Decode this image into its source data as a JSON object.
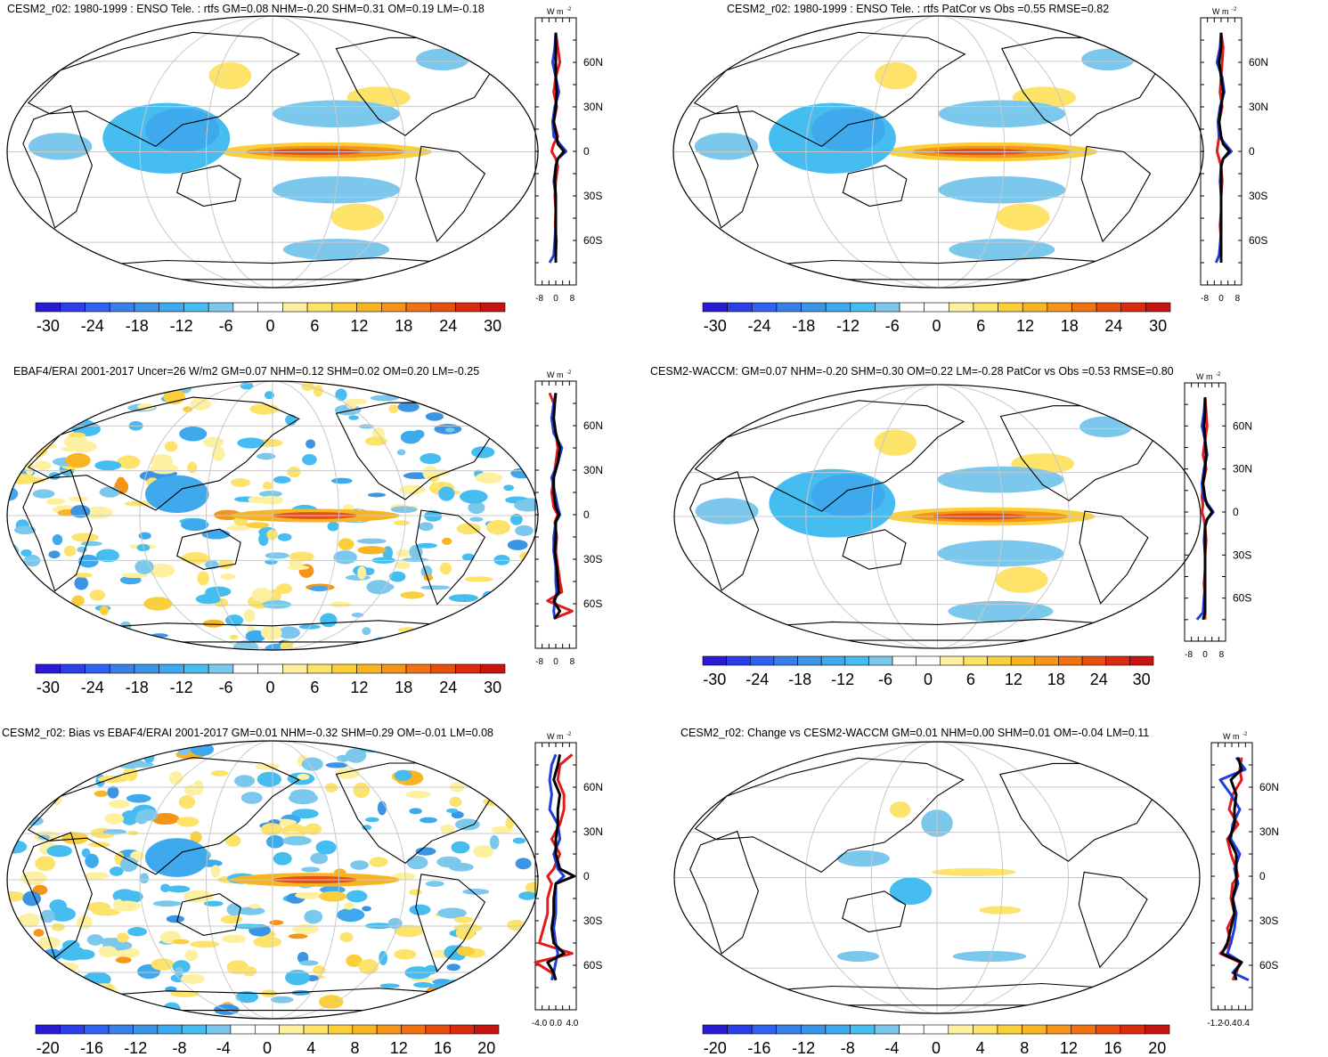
{
  "palettes": {
    "p30": [
      "#2a1ad6",
      "#2c3ee8",
      "#2f62f0",
      "#3a7fe8",
      "#3b95e4",
      "#3ea9ec",
      "#46bdf0",
      "#7cc8ec",
      "#ffffff",
      "#ffffff",
      "#fdf0a0",
      "#fde36a",
      "#fbcf3a",
      "#f8b423",
      "#f49418",
      "#ef7314",
      "#e74f12",
      "#dc2a10",
      "#c8140e"
    ],
    "p20": [
      "#2a1ad6",
      "#2c3ee8",
      "#2f62f0",
      "#3a7fe8",
      "#3b95e4",
      "#3ea9ec",
      "#46bdf0",
      "#7cc8ec",
      "#ffffff",
      "#ffffff",
      "#fdf0a0",
      "#fde36a",
      "#fbcf3a",
      "#f8b423",
      "#f49418",
      "#ef7314",
      "#e74f12",
      "#dc2a10",
      "#c8140e"
    ]
  },
  "unit_label": "W m",
  "unit_exp": "-2",
  "lat_ticks": [
    "60N",
    "30N",
    "0",
    "30S",
    "60S"
  ],
  "panels": [
    {
      "title": "CESM2_r02: 1980-1999 : ENSO Tele. : rtfs GM=0.08 NHM=-0.20 SHM=0.31 OM=0.19 LM=-0.18",
      "style": "smooth",
      "colorbar": {
        "palette": "p30",
        "labels": [
          "-30",
          "-24",
          "-18",
          "-12",
          "-6",
          "0",
          "6",
          "12",
          "18",
          "24",
          "30"
        ]
      },
      "zonal_x_ticks": [
        "-8",
        "0",
        "8"
      ],
      "zonal_xlim": [
        -10,
        10
      ],
      "chart_data": {
        "type": "line",
        "ylim": [
          -90,
          90
        ],
        "x_label": "W m-2",
        "series": [
          {
            "color": "#e31a1c",
            "y": [
              80,
              70,
              60,
              50,
              40,
              30,
              20,
              10,
              5,
              0,
              -5,
              -10,
              -20,
              -30,
              -40,
              -50,
              -60,
              -70,
              -75
            ],
            "x": [
              0,
              1,
              2,
              0,
              -1,
              0.5,
              -1,
              1,
              -1,
              -2,
              0,
              1,
              0,
              -0.5,
              0,
              -0.3,
              0.3,
              0,
              0
            ]
          },
          {
            "color": "#1f3fd8",
            "y": [
              80,
              70,
              60,
              50,
              40,
              30,
              20,
              10,
              5,
              0,
              -5,
              -10,
              -20,
              -30,
              -40,
              -50,
              -60,
              -70,
              -75
            ],
            "x": [
              0,
              -0.5,
              -1.5,
              0,
              1.5,
              -0.5,
              -1.5,
              -1,
              2,
              5,
              1,
              0,
              -1,
              0,
              0,
              0,
              -0.5,
              -1,
              -3
            ]
          },
          {
            "color": "#000000",
            "y": [
              80,
              70,
              60,
              50,
              40,
              30,
              20,
              10,
              5,
              0,
              -5,
              -10,
              -20,
              -30,
              -40,
              -50,
              -60,
              -70,
              -75
            ],
            "x": [
              0,
              0,
              0,
              0,
              0.5,
              0,
              -1,
              0.5,
              1,
              4,
              1,
              0,
              -0.5,
              0,
              0,
              0,
              0,
              0,
              0
            ]
          }
        ]
      }
    },
    {
      "title": "CESM2_r02: 1980-1999 : ENSO Tele. : rtfs PatCor vs Obs =0.55 RMSE=0.82",
      "style": "smooth",
      "colorbar": {
        "palette": "p30",
        "labels": [
          "-30",
          "-24",
          "-18",
          "-12",
          "-6",
          "0",
          "6",
          "12",
          "18",
          "24",
          "30"
        ]
      },
      "zonal_x_ticks": [
        "-8",
        "0",
        "8"
      ],
      "zonal_xlim": [
        -10,
        10
      ],
      "chart_data": {
        "type": "line",
        "ylim": [
          -90,
          90
        ],
        "x_label": "W m-2",
        "series": [
          {
            "color": "#e31a1c",
            "y": [
              80,
              70,
              60,
              50,
              40,
              30,
              20,
              10,
              5,
              0,
              -5,
              -10,
              -20,
              -30,
              -40,
              -50,
              -60,
              -70,
              -75
            ],
            "x": [
              0,
              1,
              0.5,
              0,
              -0.5,
              0.5,
              -1,
              -1,
              -1.5,
              -2,
              -1,
              0,
              0.5,
              0,
              0,
              -0.5,
              0,
              0,
              0
            ]
          },
          {
            "color": "#1f3fd8",
            "y": [
              80,
              70,
              60,
              50,
              40,
              30,
              20,
              10,
              5,
              0,
              -5,
              -10,
              -20,
              -30,
              -40,
              -50,
              -60,
              -70,
              -75
            ],
            "x": [
              0,
              -0.5,
              -2,
              0.5,
              1.5,
              -0.5,
              -1.5,
              -1,
              2,
              5,
              1,
              0,
              -0.5,
              0,
              0,
              0,
              -0.3,
              -1,
              -2.5
            ]
          },
          {
            "color": "#000000",
            "y": [
              80,
              70,
              60,
              50,
              40,
              30,
              20,
              10,
              5,
              0,
              -5,
              -10,
              -20,
              -30,
              -40,
              -50,
              -60,
              -70,
              -75
            ],
            "x": [
              0,
              0,
              -1,
              0,
              1,
              0,
              -1,
              0,
              1,
              4,
              1,
              0,
              0,
              0,
              0,
              0,
              0,
              0,
              0
            ]
          }
        ]
      }
    },
    {
      "title": "EBAF4/ERAI 2001-2017 Uncer=26 W/m2 GM=0.07 NHM=0.12 SHM=0.02 OM=0.20 LM=-0.25",
      "style": "noisy",
      "colorbar": {
        "palette": "p30",
        "labels": [
          "-30",
          "-24",
          "-18",
          "-12",
          "-6",
          "0",
          "6",
          "12",
          "18",
          "24",
          "30"
        ]
      },
      "zonal_x_ticks": [
        "-8",
        "0",
        "8"
      ],
      "zonal_xlim": [
        -10,
        10
      ],
      "chart_data": {
        "type": "line",
        "ylim": [
          -90,
          90
        ],
        "x_label": "W m-2",
        "series": [
          {
            "color": "#e31a1c",
            "y": [
              82,
              75,
              65,
              55,
              45,
              35,
              25,
              15,
              5,
              0,
              -5,
              -15,
              -25,
              -35,
              -45,
              -52,
              -58,
              -65,
              -70
            ],
            "x": [
              -3,
              -1,
              -1.5,
              0,
              1,
              0,
              -1,
              -2,
              -1,
              1,
              -0.5,
              0.5,
              0,
              1,
              2,
              3,
              -4,
              8,
              -1
            ]
          },
          {
            "color": "#1f3fd8",
            "y": [
              82,
              75,
              65,
              55,
              45,
              35,
              25,
              15,
              5,
              0,
              -5,
              -15,
              -25,
              -35,
              -45,
              -52,
              -58,
              -65,
              -70
            ],
            "x": [
              0,
              -1,
              -2,
              -1,
              3,
              1,
              -2,
              -0.5,
              1,
              2,
              0,
              -1,
              -1,
              0,
              0,
              0.5,
              -0.5,
              -1,
              -0.5
            ]
          },
          {
            "color": "#000000",
            "y": [
              82,
              75,
              65,
              55,
              45,
              35,
              25,
              15,
              5,
              0,
              -5,
              -15,
              -25,
              -35,
              -45,
              -52,
              -58,
              -65,
              -70
            ],
            "x": [
              0,
              -0.5,
              -1,
              0,
              2,
              1,
              -1,
              -1,
              0,
              1.5,
              0,
              0,
              -0.5,
              0.5,
              1,
              1.5,
              -1,
              2,
              -0.5
            ]
          }
        ]
      }
    },
    {
      "title": "CESM2-WACCM: GM=0.07 NHM=-0.20 SHM=0.30 OM=0.22 LM=-0.28 PatCor vs Obs =0.53 RMSE=0.80",
      "style": "smooth",
      "colorbar": {
        "palette": "p30",
        "labels": [
          "-30",
          "-24",
          "-18",
          "-12",
          "-6",
          "0",
          "6",
          "12",
          "18",
          "24",
          "30"
        ]
      },
      "zonal_x_ticks": [
        "-8",
        "0",
        "8"
      ],
      "zonal_xlim": [
        -10,
        10
      ],
      "chart_data": {
        "type": "line",
        "ylim": [
          -90,
          90
        ],
        "x_label": "W m-2",
        "series": [
          {
            "color": "#e31a1c",
            "y": [
              80,
              70,
              60,
              50,
              40,
              30,
              20,
              10,
              5,
              0,
              -5,
              -10,
              -20,
              -30,
              -40,
              -50,
              -60,
              -70,
              -75
            ],
            "x": [
              0,
              0.5,
              1,
              0,
              -1,
              0.5,
              -1,
              -1.5,
              -1,
              -1.5,
              -0.5,
              0,
              0.5,
              0,
              0,
              -0.5,
              0,
              0,
              0
            ]
          },
          {
            "color": "#1f3fd8",
            "y": [
              80,
              70,
              60,
              50,
              40,
              30,
              20,
              10,
              5,
              0,
              -5,
              -10,
              -20,
              -30,
              -40,
              -50,
              -60,
              -70,
              -75
            ],
            "x": [
              0,
              -0.5,
              -1.5,
              0,
              1,
              -0.5,
              -1.5,
              -1,
              1.5,
              4,
              1,
              0,
              -0.5,
              0,
              0,
              0,
              -0.5,
              -1,
              -4
            ]
          },
          {
            "color": "#000000",
            "y": [
              80,
              70,
              60,
              50,
              40,
              30,
              20,
              10,
              5,
              0,
              -5,
              -10,
              -20,
              -30,
              -40,
              -50,
              -60,
              -70,
              -75
            ],
            "x": [
              0,
              0,
              -0.5,
              0,
              0.5,
              0,
              -1,
              0,
              1,
              3.5,
              1,
              0,
              0,
              0,
              0,
              0,
              0,
              0,
              -1
            ]
          }
        ]
      }
    },
    {
      "title": "CESM2_r02: Bias vs EBAF4/ERAI 2001-2017 GM=0.01 NHM=-0.32 SHM=0.29 OM=-0.01 LM=0.08",
      "style": "noisy",
      "colorbar": {
        "palette": "p20",
        "labels": [
          "-20",
          "-16",
          "-12",
          "-8",
          "-4",
          "0",
          "4",
          "8",
          "12",
          "16",
          "20"
        ]
      },
      "zonal_x_ticks": [
        "-4.0",
        "0.0",
        "4.0"
      ],
      "zonal_xlim": [
        -5,
        5
      ],
      "chart_data": {
        "type": "line",
        "ylim": [
          -90,
          90
        ],
        "x_label": "W m-2",
        "series": [
          {
            "color": "#e31a1c",
            "y": [
              82,
              75,
              65,
              55,
              45,
              35,
              25,
              15,
              5,
              0,
              -5,
              -15,
              -25,
              -35,
              -45,
              -52,
              -58,
              -65,
              -70
            ],
            "x": [
              4,
              1,
              0.5,
              2,
              2,
              1,
              -1,
              1,
              -0.5,
              -2,
              -1,
              -2,
              -2,
              -3,
              -4,
              4,
              -5,
              -1,
              0
            ]
          },
          {
            "color": "#1f3fd8",
            "y": [
              82,
              75,
              65,
              55,
              45,
              35,
              25,
              15,
              5,
              0,
              -5,
              -15,
              -25,
              -35,
              -45,
              -52,
              -58,
              -65,
              -70
            ],
            "x": [
              0,
              -1,
              -1.5,
              -1,
              -1.5,
              0.5,
              1,
              -0.5,
              0.5,
              2,
              0,
              0,
              0,
              -0.5,
              0,
              0.5,
              0,
              -0.5,
              -1
            ]
          },
          {
            "color": "#000000",
            "y": [
              82,
              75,
              65,
              55,
              45,
              35,
              25,
              15,
              5,
              0,
              -5,
              -15,
              -25,
              -35,
              -45,
              -52,
              -58,
              -65,
              -70
            ],
            "x": [
              1,
              0.5,
              -0.5,
              1,
              0.5,
              0.5,
              0,
              0,
              1,
              4.5,
              0,
              -0.5,
              -0.5,
              -1,
              -0.5,
              2,
              -2,
              -0.5,
              0
            ]
          }
        ]
      }
    },
    {
      "title": "CESM2_r02: Change vs CESM2-WACCM GM=0.01 NHM=0.00 SHM=0.01 OM=-0.04 LM=0.11",
      "style": "sparse",
      "colorbar": {
        "palette": "p20",
        "labels": [
          "-20",
          "-16",
          "-12",
          "-8",
          "-4",
          "0",
          "4",
          "8",
          "12",
          "16",
          "20"
        ]
      },
      "zonal_x_ticks": [
        "-1.2",
        "-0.4",
        "0.4"
      ],
      "zonal_xlim": [
        -1.4,
        0.9
      ],
      "chart_data": {
        "type": "line",
        "ylim": [
          -90,
          90
        ],
        "x_label": "W m-2",
        "series": [
          {
            "color": "#e31a1c",
            "y": [
              80,
              72,
              65,
              55,
              45,
              35,
              25,
              15,
              5,
              0,
              -5,
              -15,
              -25,
              -35,
              -45,
              -52,
              -58,
              -65,
              -70
            ],
            "x": [
              0.3,
              0.2,
              0.3,
              -0.2,
              -0.4,
              0.1,
              -0.5,
              -0.3,
              0,
              0.1,
              -0.2,
              -0.3,
              -0.1,
              -0.5,
              -0.3,
              -0.9,
              0.2,
              0,
              -0.2
            ]
          },
          {
            "color": "#1f3fd8",
            "y": [
              80,
              72,
              65,
              55,
              45,
              35,
              25,
              15,
              5,
              0,
              -5,
              -15,
              -25,
              -35,
              -45,
              -52,
              -58,
              -65,
              -70
            ],
            "x": [
              0,
              0.5,
              -0.9,
              -0.3,
              0.2,
              -0.2,
              -0.3,
              0.2,
              -0.1,
              0,
              0.1,
              -0.2,
              0,
              -0.1,
              -0.3,
              -0.5,
              0.3,
              -0.2,
              0.7
            ]
          },
          {
            "color": "#000000",
            "y": [
              80,
              72,
              65,
              55,
              45,
              35,
              25,
              15,
              5,
              0,
              -5,
              -15,
              -25,
              -35,
              -45,
              -52,
              -58,
              -65,
              -70
            ],
            "x": [
              0.1,
              0.3,
              -0.3,
              0,
              -0.1,
              -0.1,
              -0.4,
              0,
              0,
              0,
              0,
              -0.2,
              -0.1,
              -0.3,
              -0.5,
              -0.8,
              0.3,
              -0.1,
              0
            ]
          }
        ]
      }
    }
  ]
}
